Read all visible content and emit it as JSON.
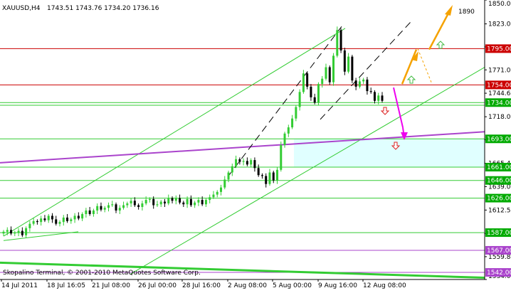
{
  "header": {
    "symbol_tf": "XAUUSD,H4",
    "ohlc": "1743.51 1743.76 1734.20 1736.16"
  },
  "footer": {
    "copyright": "Skopalino Terminal, © 2001-2010 MetaQuotes Software Corp."
  },
  "annotations": {
    "target_label": "1890"
  },
  "colors": {
    "up": "#33cc33",
    "down": "#000000",
    "axis": "#000000",
    "green_line": "#33cc33",
    "red_line": "#cc0000",
    "purple_line": "#aa44cc",
    "magenta_arrow": "#ee00ee",
    "orange_arrow": "#f5a200",
    "zone_fill": "#e0ffff",
    "label_red_bg": "#cc0000",
    "label_green_bg": "#00aa00",
    "label_purple_bg": "#aa44cc"
  },
  "chart_data": {
    "type": "candlestick",
    "symbol": "XAUUSD",
    "timeframe": "H4",
    "ylim": [
      1534.0,
      1850.0
    ],
    "y_ticks": [
      "1850.00",
      "1823.00",
      "1797.00",
      "1771.00",
      "1744.60",
      "1718.00",
      "1692.00",
      "1665.40",
      "1639.00",
      "1612.50",
      "1586.00",
      "1559.80",
      "1534.00"
    ],
    "x_ticks": [
      "14 Jul 2011",
      "18 Jul 16:05",
      "21 Jul 08:00",
      "26 Jul 00:00",
      "28 Jul 16:00",
      "2 Aug 08:00",
      "5 Aug 00:00",
      "9 Aug 16:00",
      "12 Aug 08:00"
    ],
    "levels": [
      {
        "value": 1795.0,
        "label": "1795.00",
        "color": "red"
      },
      {
        "value": 1754.0,
        "label": "1754.00",
        "color": "red"
      },
      {
        "value": 1734.0,
        "label": "1734.00",
        "color": "green"
      },
      {
        "value": 1693.0,
        "label": "1693.00",
        "color": "green"
      },
      {
        "value": 1661.0,
        "label": "1661.00",
        "color": "green"
      },
      {
        "value": 1646.0,
        "label": "1646.00",
        "color": "green"
      },
      {
        "value": 1626.0,
        "label": "1626.00",
        "color": "green"
      },
      {
        "value": 1587.0,
        "label": "1587.00",
        "color": "green"
      },
      {
        "value": 1567.0,
        "label": "1567.00",
        "color": "purple"
      },
      {
        "value": 1542.0,
        "label": "1542.00",
        "color": "purple"
      }
    ],
    "candles_close": [
      1588,
      1590,
      1586,
      1587,
      1589,
      1584,
      1592,
      1597,
      1600,
      1599,
      1603,
      1601,
      1606,
      1602,
      1597,
      1599,
      1604,
      1600,
      1602,
      1606,
      1603,
      1608,
      1612,
      1608,
      1612,
      1617,
      1613,
      1615,
      1618,
      1619,
      1612,
      1615,
      1618,
      1620,
      1623,
      1618,
      1616,
      1620,
      1624,
      1625,
      1618,
      1619,
      1622,
      1620,
      1626,
      1623,
      1626,
      1621,
      1619,
      1625,
      1618,
      1621,
      1624,
      1619,
      1624,
      1627,
      1630,
      1633,
      1638,
      1647,
      1655,
      1662,
      1670,
      1667,
      1668,
      1664,
      1669,
      1660,
      1652,
      1651,
      1642,
      1655,
      1646,
      1658,
      1686,
      1699,
      1706,
      1716,
      1729,
      1746,
      1767,
      1752,
      1740,
      1734,
      1755,
      1761,
      1774,
      1757,
      1787,
      1816,
      1793,
      1769,
      1786,
      1759,
      1752,
      1758,
      1760,
      1747,
      1746,
      1736,
      1742,
      1736
    ]
  }
}
